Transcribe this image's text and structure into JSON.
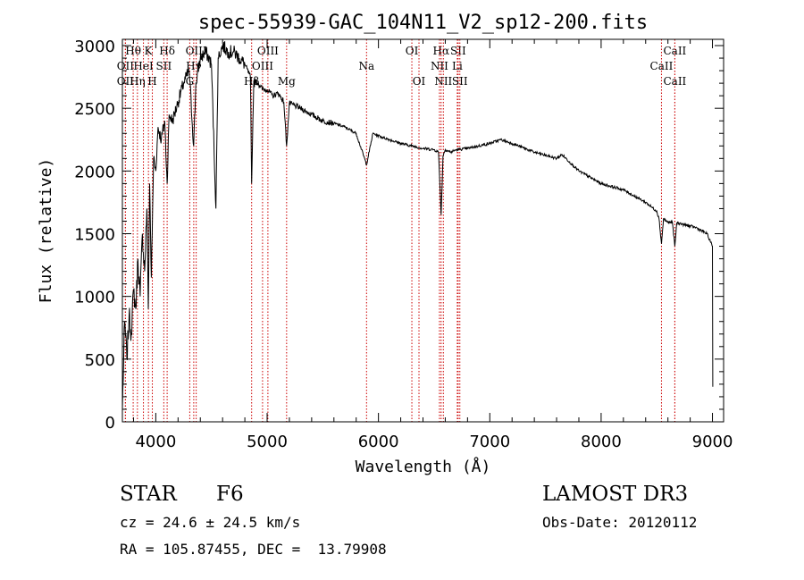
{
  "chart_data": {
    "type": "line",
    "title": "spec-55939-GAC_104N11_V2_sp12-200.fits",
    "xlabel": "Wavelength (Å)",
    "ylabel": "Flux (relative)",
    "xlim": [
      3700,
      9100
    ],
    "ylim": [
      0,
      3050
    ],
    "x_ticks": [
      4000,
      5000,
      6000,
      7000,
      8000,
      9000
    ],
    "y_ticks": [
      0,
      500,
      1000,
      1500,
      2000,
      2500,
      3000
    ],
    "series": [
      {
        "name": "flux",
        "x": [
          3700,
          3720,
          3740,
          3760,
          3780,
          3800,
          3820,
          3840,
          3860,
          3880,
          3900,
          3920,
          3933,
          3945,
          3960,
          3968,
          3980,
          4000,
          4020,
          4050,
          4080,
          4102,
          4120,
          4150,
          4200,
          4250,
          4300,
          4340,
          4360,
          4400,
          4450,
          4500,
          4540,
          4560,
          4600,
          4650,
          4700,
          4750,
          4800,
          4850,
          4861,
          4880,
          4920,
          4960,
          5000,
          5050,
          5100,
          5150,
          5175,
          5200,
          5250,
          5300,
          5400,
          5500,
          5600,
          5700,
          5800,
          5893,
          5950,
          6000,
          6100,
          6200,
          6300,
          6400,
          6500,
          6540,
          6563,
          6580,
          6600,
          6650,
          6700,
          6800,
          6900,
          7000,
          7100,
          7200,
          7400,
          7600,
          7650,
          7800,
          8000,
          8200,
          8400,
          8500,
          8520,
          8542,
          8560,
          8600,
          8640,
          8662,
          8680,
          8750,
          8850,
          8950,
          9000,
          9003
        ],
        "values": [
          100,
          800,
          500,
          850,
          700,
          1050,
          900,
          1300,
          1000,
          1500,
          1200,
          1700,
          900,
          1900,
          1150,
          1500,
          2100,
          2000,
          2350,
          2250,
          2400,
          1900,
          2450,
          2400,
          2550,
          2700,
          2800,
          2200,
          2700,
          2900,
          2950,
          2850,
          1700,
          2900,
          3000,
          2950,
          2950,
          2900,
          2850,
          2750,
          1900,
          2720,
          2700,
          2650,
          2650,
          2600,
          2620,
          2550,
          2200,
          2540,
          2520,
          2500,
          2450,
          2400,
          2380,
          2350,
          2300,
          2050,
          2300,
          2280,
          2250,
          2220,
          2200,
          2180,
          2170,
          2150,
          1650,
          2120,
          2170,
          2150,
          2170,
          2180,
          2200,
          2220,
          2250,
          2220,
          2150,
          2100,
          2130,
          2000,
          1900,
          1850,
          1750,
          1680,
          1620,
          1420,
          1620,
          1590,
          1590,
          1400,
          1590,
          1570,
          1550,
          1500,
          1400,
          280
        ]
      }
    ],
    "line_markers": [
      {
        "label": "Hθ",
        "x": 3797,
        "row": 0
      },
      {
        "label": "K",
        "x": 3934,
        "row": 0
      },
      {
        "label": "Hδ",
        "x": 4102,
        "row": 0
      },
      {
        "label": "OIII",
        "x": 4363,
        "row": 0
      },
      {
        "label": "OIII",
        "x": 5007,
        "row": 0
      },
      {
        "label": "OI",
        "x": 6300,
        "row": 0
      },
      {
        "label": "Hα",
        "x": 6563,
        "row": 0
      },
      {
        "label": "SII",
        "x": 6716,
        "row": 0
      },
      {
        "label": "CaII",
        "x": 8662,
        "row": 0
      },
      {
        "label": "OII",
        "x": 3727,
        "row": 1
      },
      {
        "label": "HeI",
        "x": 3889,
        "row": 1
      },
      {
        "label": "SII",
        "x": 4072,
        "row": 1
      },
      {
        "label": "Hγ",
        "x": 4341,
        "row": 1
      },
      {
        "label": "OIII",
        "x": 4959,
        "row": 1
      },
      {
        "label": "Na",
        "x": 5893,
        "row": 1
      },
      {
        "label": "NII",
        "x": 6548,
        "row": 1
      },
      {
        "label": "Li",
        "x": 6708,
        "row": 1
      },
      {
        "label": "CaII",
        "x": 8542,
        "row": 1
      },
      {
        "label": "OII",
        "x": 3727,
        "row": 2
      },
      {
        "label": "Hη",
        "x": 3835,
        "row": 2
      },
      {
        "label": "H",
        "x": 3969,
        "row": 2
      },
      {
        "label": "G",
        "x": 4305,
        "row": 2
      },
      {
        "label": "Hβ",
        "x": 4861,
        "row": 2
      },
      {
        "label": "Mg",
        "x": 5175,
        "row": 2
      },
      {
        "label": "OI",
        "x": 6364,
        "row": 2
      },
      {
        "label": "NII",
        "x": 6583,
        "row": 2
      },
      {
        "label": "SII",
        "x": 6731,
        "row": 2
      },
      {
        "label": "CaII",
        "x": 8662,
        "row": 2
      }
    ],
    "marker_color": "#cc0000"
  },
  "info": {
    "object_type": "STAR",
    "subclass": "F6",
    "survey": "LAMOST DR3",
    "cz": "cz = 24.6 ± 24.5 km/s",
    "obs_date": "Obs-Date: 20120112",
    "coords": "RA = 105.87455, DEC =  13.79908"
  }
}
